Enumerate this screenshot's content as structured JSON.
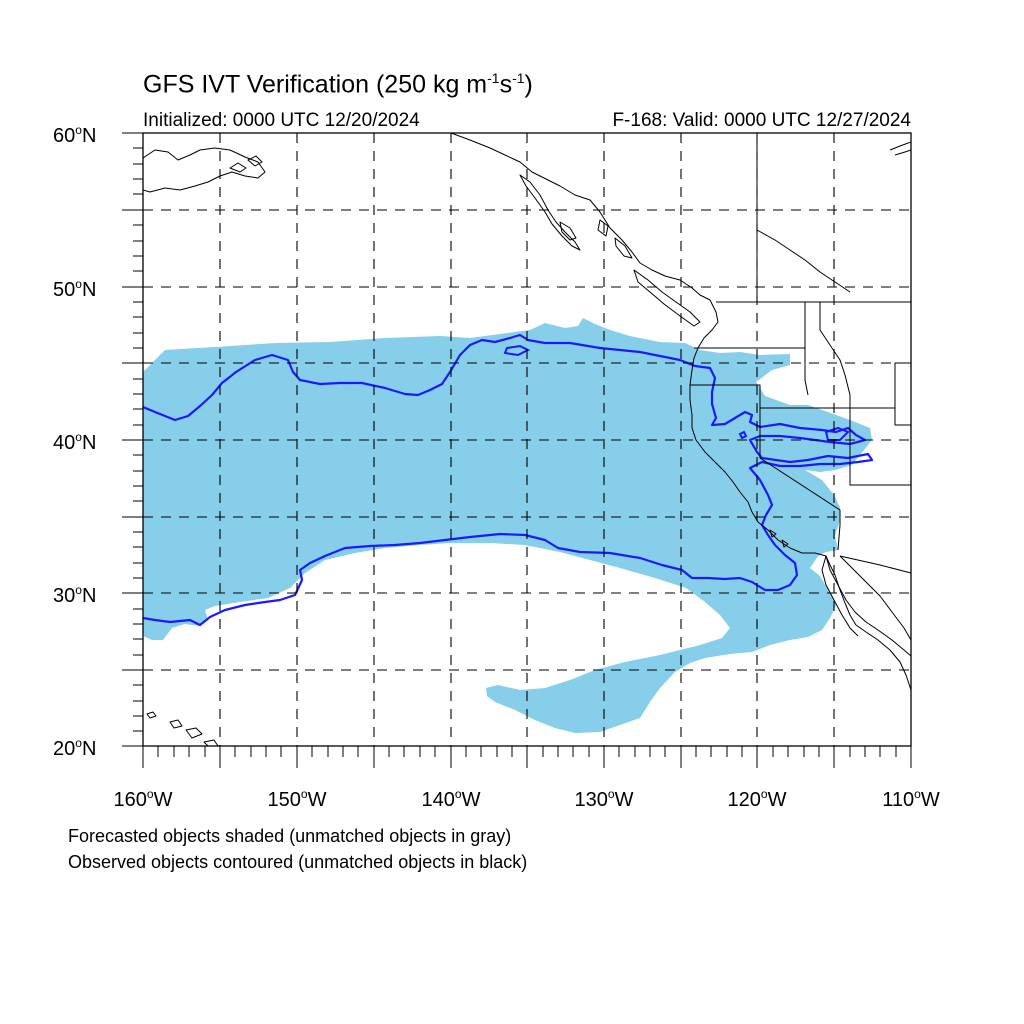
{
  "title_main": "GFS IVT Verification (250 kg m",
  "title_exp1": "-1",
  "title_mid": "s",
  "title_exp2": "-1",
  "title_end": ")",
  "initialized": "Initialized: 0000 UTC 12/20/2024",
  "valid": "F-168: Valid: 0000 UTC 12/27/2024",
  "lat_labels": [
    "60",
    "50",
    "40",
    "30",
    "20"
  ],
  "lat_suffix": "N",
  "lon_labels": [
    "160",
    "150",
    "140",
    "130",
    "120",
    "110"
  ],
  "lon_suffix": "W",
  "deg_symbol": "o",
  "footnote1": "Forecasted objects shaded (unmatched objects in gray)",
  "footnote2": "Observed objects contoured (unmatched objects in black)",
  "colors": {
    "forecast_fill": "#87ceeb",
    "observed_contour": "#1a1aff",
    "coastline": "#000000",
    "grid": "#000000"
  },
  "extent": {
    "lon_min": -160,
    "lon_max": -110,
    "lat_min": 20,
    "lat_max": 60
  }
}
